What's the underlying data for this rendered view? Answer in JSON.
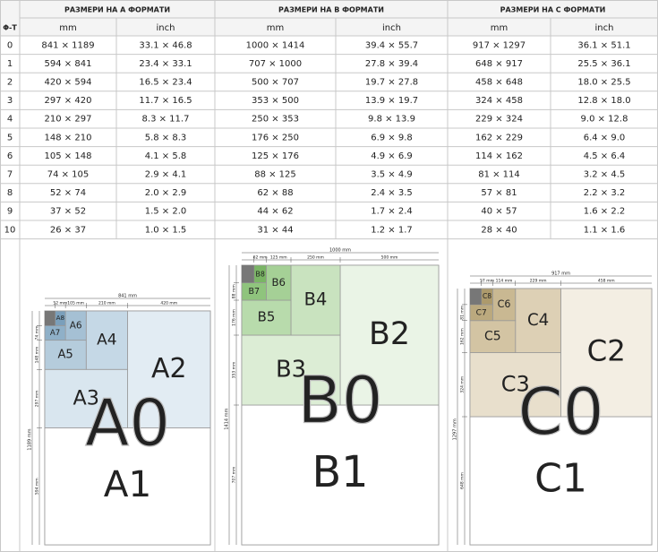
{
  "table": {
    "corner": "Φ-T",
    "groups": [
      "РАЗМЕРИ НА А ФОРМАТИ",
      "РАЗМЕРИ НА B ФОРМАТИ",
      "РАЗМЕРИ НА С ФОРМАТИ"
    ],
    "subheaders": [
      "mm",
      "inch",
      "mm",
      "inch",
      "mm",
      "inch"
    ],
    "rows": [
      [
        "0",
        "841 × 1189",
        "33.1 × 46.8",
        "1000 × 1414",
        "39.4 × 55.7",
        "917 × 1297",
        "36.1 × 51.1"
      ],
      [
        "1",
        "594 × 841",
        "23.4 × 33.1",
        "707 × 1000",
        "27.8 × 39.4",
        "648 × 917",
        "25.5 × 36.1"
      ],
      [
        "2",
        "420 × 594",
        "16.5 × 23.4",
        "500 × 707",
        "19.7 × 27.8",
        "458 × 648",
        "18.0 × 25.5"
      ],
      [
        "3",
        "297 × 420",
        "11.7 × 16.5",
        "353 × 500",
        "13.9 × 19.7",
        "324 × 458",
        "12.8 × 18.0"
      ],
      [
        "4",
        "210 × 297",
        "8.3 × 11.7",
        "250 × 353",
        "9.8 × 13.9",
        "229 × 324",
        "9.0 × 12.8"
      ],
      [
        "5",
        "148 × 210",
        "5.8 × 8.3",
        "176 × 250",
        "6.9 × 9.8",
        "162 × 229",
        "6.4 × 9.0"
      ],
      [
        "6",
        "105 × 148",
        "4.1 × 5.8",
        "125 × 176",
        "4.9 × 6.9",
        "114 × 162",
        "4.5 × 6.4"
      ],
      [
        "7",
        "74 × 105",
        "2.9 × 4.1",
        "88 × 125",
        "3.5 × 4.9",
        "81 × 114",
        "3.2 × 4.5"
      ],
      [
        "8",
        "52 × 74",
        "2.0 × 2.9",
        "62 × 88",
        "2.4 × 3.5",
        "57 × 81",
        "2.2 × 3.2"
      ],
      [
        "9",
        "37 × 52",
        "1.5 × 2.0",
        "44 × 62",
        "1.7 × 2.4",
        "40 × 57",
        "1.6 × 2.2"
      ],
      [
        "10",
        "26 × 37",
        "1.0 × 1.5",
        "31 × 44",
        "1.2 × 1.7",
        "28 × 40",
        "1.1 × 1.6"
      ]
    ]
  },
  "diagrams": [
    {
      "sheets": [
        "A0",
        "A1",
        "A2",
        "A3",
        "A4",
        "A5",
        "A6",
        "A7",
        "A8"
      ],
      "colors": [
        "#ffffff",
        "#ffffff",
        "#e2ecf3",
        "#d9e6ef",
        "#c5d8e6",
        "#b5ccdc",
        "#a5c0d4",
        "#8fb0c8",
        "#7a9fbb"
      ],
      "corner_color": "#777777",
      "width_total": "841 mm",
      "widths": [
        "420 mm",
        "210 mm",
        "105 mm",
        "52 mm"
      ],
      "height_total": "1189 mm",
      "heights": [
        "594 mm",
        "297 mm",
        "148 mm",
        "74 mm"
      ]
    },
    {
      "sheets": [
        "B0",
        "B1",
        "B2",
        "B3",
        "B4",
        "B5",
        "B6",
        "B7",
        "B8"
      ],
      "colors": [
        "#ffffff",
        "#ffffff",
        "#eaf4e6",
        "#dcedd5",
        "#c9e3bf",
        "#b8dbac",
        "#a5d096",
        "#8fc47d",
        "#7ab565"
      ],
      "corner_color": "#777777",
      "width_total": "1000 mm",
      "widths": [
        "500 mm",
        "250 mm",
        "125 mm",
        "62 mm"
      ],
      "height_total": "1414 mm",
      "heights": [
        "707 mm",
        "353 mm",
        "176 mm",
        "88 mm"
      ]
    },
    {
      "sheets": [
        "C0",
        "C1",
        "C2",
        "C3",
        "C4",
        "C5",
        "C6",
        "C7",
        "C8"
      ],
      "colors": [
        "#ffffff",
        "#ffffff",
        "#f3eee3",
        "#e8dfcc",
        "#ddd0b5",
        "#d3c4a3",
        "#c9b892",
        "#bba97e",
        "#ad9a6c"
      ],
      "corner_color": "#777777",
      "width_total": "917 mm",
      "widths": [
        "458 mm",
        "229 mm",
        "114 mm",
        "57 mm"
      ],
      "height_total": "1297 mm",
      "heights": [
        "648 mm",
        "324 mm",
        "162 mm",
        "81 mm"
      ]
    }
  ]
}
